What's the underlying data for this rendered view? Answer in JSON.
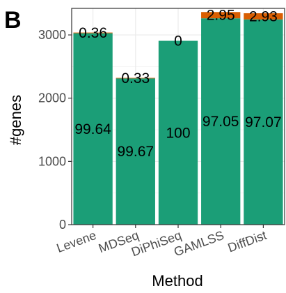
{
  "panel_tag": "B",
  "chart_data": {
    "type": "bar",
    "stacked": true,
    "categories": [
      "Levene",
      "MDSeq",
      "DiPhiSeq",
      "GAMLSS",
      "DiffDist"
    ],
    "series": [
      {
        "color": "#1B9E77",
        "values": [
          3027,
          2313,
          2907,
          3263,
          3245
        ],
        "labels": [
          "99.64",
          "99.67",
          "100",
          "97.05",
          "97.07"
        ]
      },
      {
        "color": "#D95F02",
        "values": [
          11,
          8,
          0,
          99,
          98
        ],
        "labels": [
          "0.36",
          "0.33",
          "0",
          "2.95",
          "2.93"
        ]
      }
    ],
    "title": "",
    "xlabel": "Method",
    "ylabel": "#genes",
    "ylim": [
      0,
      3420
    ],
    "yticks": [
      0,
      1000,
      2000,
      3000
    ],
    "grid": true,
    "panel_border": true,
    "x_tick_rotation_deg": 20
  }
}
